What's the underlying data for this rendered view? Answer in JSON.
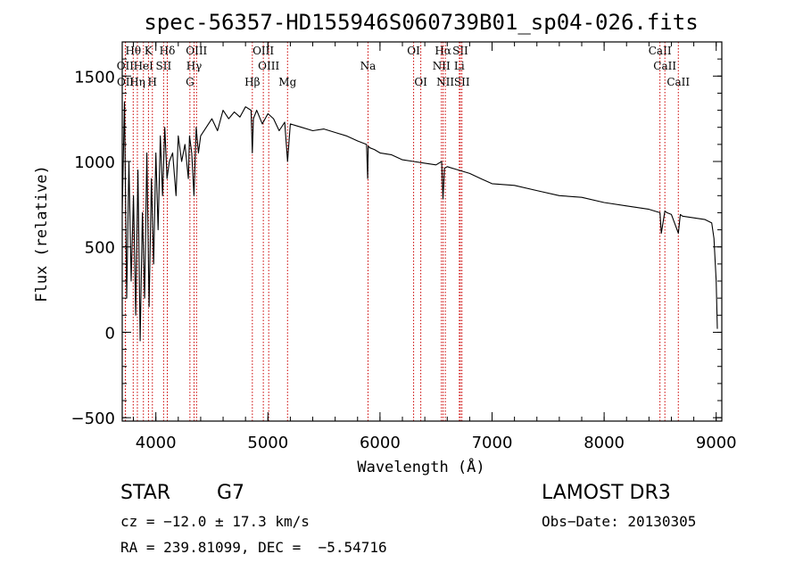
{
  "chart_data": {
    "type": "line",
    "title": "spec-56357-HD155946S060739B01_sp04-026.fits",
    "xlabel": "Wavelength (Å)",
    "ylabel": "Flux (relative)",
    "xlim": [
      3700,
      9050
    ],
    "ylim": [
      -520,
      1700
    ],
    "xticks": [
      4000,
      5000,
      6000,
      7000,
      8000,
      9000
    ],
    "yticks": [
      -500,
      0,
      500,
      1000,
      1500
    ],
    "series": [
      {
        "name": "flux",
        "x": [
          3700,
          3720,
          3740,
          3760,
          3780,
          3800,
          3820,
          3840,
          3860,
          3880,
          3900,
          3920,
          3940,
          3960,
          3980,
          4000,
          4020,
          4040,
          4060,
          4080,
          4100,
          4120,
          4150,
          4180,
          4200,
          4230,
          4260,
          4290,
          4300,
          4320,
          4340,
          4360,
          4380,
          4400,
          4450,
          4500,
          4550,
          4600,
          4650,
          4700,
          4750,
          4800,
          4850,
          4861,
          4870,
          4900,
          4950,
          5000,
          5050,
          5100,
          5150,
          5175,
          5200,
          5250,
          5300,
          5400,
          5500,
          5600,
          5700,
          5800,
          5880,
          5890,
          5895,
          5910,
          5950,
          6000,
          6100,
          6200,
          6300,
          6400,
          6500,
          6550,
          6562,
          6575,
          6600,
          6700,
          6800,
          6900,
          7000,
          7200,
          7400,
          7600,
          7800,
          8000,
          8200,
          8400,
          8498,
          8510,
          8542,
          8560,
          8600,
          8662,
          8680,
          8700,
          8800,
          8900,
          8960,
          8980,
          9000,
          9010
        ],
        "y": [
          700,
          1350,
          200,
          1000,
          300,
          800,
          100,
          950,
          -50,
          700,
          200,
          1050,
          150,
          900,
          400,
          1050,
          600,
          1150,
          800,
          1200,
          900,
          1000,
          1050,
          800,
          1150,
          1000,
          1100,
          900,
          1150,
          1050,
          800,
          1200,
          1050,
          1150,
          1200,
          1250,
          1180,
          1300,
          1250,
          1290,
          1260,
          1320,
          1300,
          1050,
          1250,
          1300,
          1220,
          1280,
          1250,
          1180,
          1230,
          1000,
          1220,
          1210,
          1200,
          1180,
          1190,
          1170,
          1150,
          1120,
          1100,
          900,
          1090,
          1080,
          1070,
          1050,
          1040,
          1010,
          1000,
          990,
          980,
          1000,
          780,
          960,
          970,
          950,
          930,
          900,
          870,
          860,
          830,
          800,
          790,
          760,
          740,
          720,
          700,
          580,
          710,
          700,
          690,
          580,
          690,
          680,
          670,
          660,
          640,
          550,
          300,
          20
        ]
      }
    ],
    "line_markers": [
      {
        "label": "Hθ",
        "wavelength": 3798,
        "row": 0
      },
      {
        "label": "OII",
        "wavelength": 3727,
        "row": 1
      },
      {
        "label": "OII",
        "wavelength": 3729,
        "row": 2
      },
      {
        "label": "HeI",
        "wavelength": 3889,
        "row": 1
      },
      {
        "label": "Hη",
        "wavelength": 3835,
        "row": 2
      },
      {
        "label": "K",
        "wavelength": 3934,
        "row": 0
      },
      {
        "label": "H",
        "wavelength": 3969,
        "row": 2
      },
      {
        "label": "SII",
        "wavelength": 4069,
        "row": 1
      },
      {
        "label": "Hδ",
        "wavelength": 4102,
        "row": 0
      },
      {
        "label": "OIII",
        "wavelength": 4363,
        "row": 0
      },
      {
        "label": "Hγ",
        "wavelength": 4341,
        "row": 1
      },
      {
        "label": "G",
        "wavelength": 4304,
        "row": 2
      },
      {
        "label": "Hβ",
        "wavelength": 4861,
        "row": 2
      },
      {
        "label": "OIII",
        "wavelength": 4959,
        "row": 0
      },
      {
        "label": "OIII",
        "wavelength": 5007,
        "row": 1
      },
      {
        "label": "Mg",
        "wavelength": 5175,
        "row": 2
      },
      {
        "label": "Na",
        "wavelength": 5893,
        "row": 1
      },
      {
        "label": "OI",
        "wavelength": 6300,
        "row": 0
      },
      {
        "label": "OI",
        "wavelength": 6364,
        "row": 2
      },
      {
        "label": "Hα",
        "wavelength": 6563,
        "row": 0
      },
      {
        "label": "NII",
        "wavelength": 6548,
        "row": 1
      },
      {
        "label": "NII",
        "wavelength": 6583,
        "row": 2
      },
      {
        "label": "SII",
        "wavelength": 6717,
        "row": 0
      },
      {
        "label": "SII",
        "wavelength": 6731,
        "row": 2
      },
      {
        "label": "Li",
        "wavelength": 6708,
        "row": 1
      },
      {
        "label": "CaII",
        "wavelength": 8498,
        "row": 0
      },
      {
        "label": "CaII",
        "wavelength": 8542,
        "row": 1
      },
      {
        "label": "CaII",
        "wavelength": 8662,
        "row": 2
      }
    ]
  },
  "info": {
    "object_class": "STAR",
    "subclass": "G7",
    "survey": "LAMOST DR3",
    "cz": "cz = −12.0 ± 17.3 km/s",
    "obs_date": "Obs−Date: 20130305",
    "coords": "RA = 239.81099, DEC =  −5.54716"
  },
  "colors": {
    "line_marker": "#cc0000",
    "spectrum": "#000000"
  }
}
